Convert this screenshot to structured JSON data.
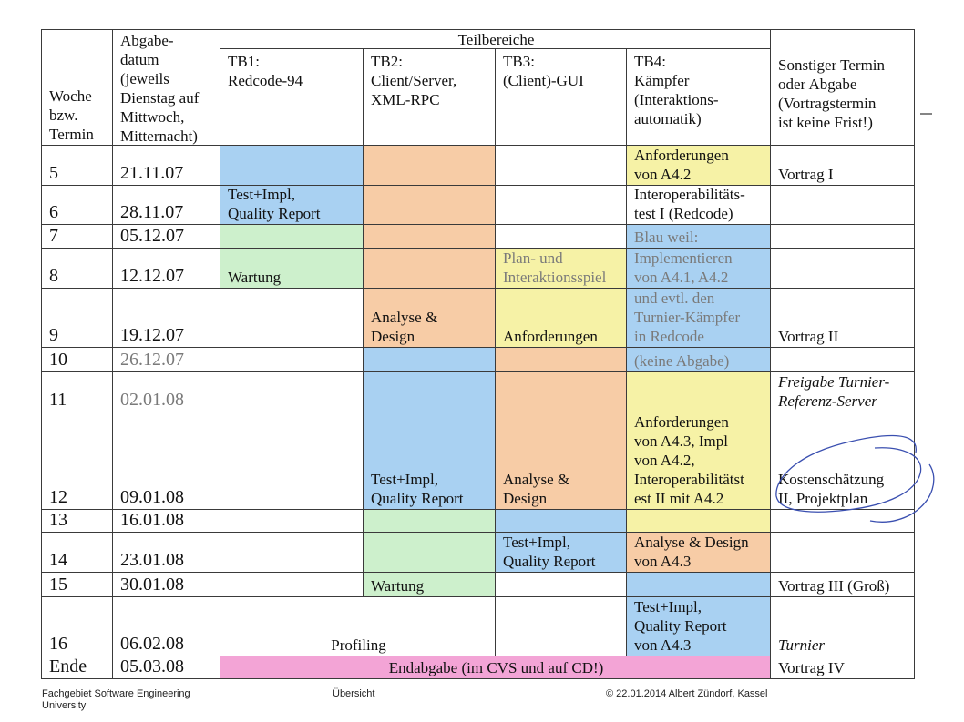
{
  "header": {
    "week": "Woche\nbzw.\nTermin",
    "deadline": "Abgabe-\ndatum\n(jeweils\nDienstag auf\nMittwoch,\nMitternacht)",
    "teilbereiche": "Teilbereiche",
    "tb1": "TB1:\nRedcode-94",
    "tb2": "TB2:\nClient/Server,\nXML-RPC",
    "tb3": "TB3:\n(Client)-GUI",
    "tb4": "TB4:\nKämpfer\n(Interaktions-\nautomatik)",
    "other": "Sonstiger Termin\noder Abgabe\n(Vortragstermin\nist keine Frist!)"
  },
  "rows": {
    "r5": {
      "week": "5",
      "date": "21.11.07",
      "tb4": "Anforderungen\nvon A4.2",
      "other": "Vortrag I"
    },
    "r6": {
      "week": "6",
      "date": "28.11.07",
      "tb1": "Test+Impl,\nQuality Report",
      "tb4": "Interoperabilitäts-\ntest I (Redcode)"
    },
    "r7": {
      "week": "7",
      "date": "05.12.07",
      "tb4": "Blau weil:"
    },
    "r8": {
      "week": "8",
      "date": "12.12.07",
      "tb1": "Wartung",
      "tb3": "Plan- und\nInteraktionsspiel",
      "tb4": "Implementieren\nvon A4.1, A4.2"
    },
    "r9": {
      "week": "9",
      "date": "19.12.07",
      "tb2": "Analyse &\nDesign",
      "tb3": "Anforderungen",
      "tb4": "und evtl. den\nTurnier-Kämpfer\nin Redcode",
      "other": "Vortrag II"
    },
    "r10": {
      "week": "10",
      "date": "26.12.07",
      "tb4": "(keine Abgabe)"
    },
    "r11": {
      "week": "11",
      "date": "02.01.08",
      "other": "Freigabe Turnier-\nReferenz-Server"
    },
    "r12": {
      "week": "12",
      "date": "09.01.08",
      "tb2": "Test+Impl,\nQuality Report",
      "tb3": "Analyse &\nDesign",
      "tb4": "Anforderungen\nvon A4.3, Impl\nvon A4.2,\nInteroperabilitätst\nest II mit A4.2",
      "other": "Kostenschätzung\nII, Projektplan"
    },
    "r13": {
      "week": "13",
      "date": "16.01.08"
    },
    "r14": {
      "week": "14",
      "date": "23.01.08",
      "tb3": "Test+Impl,\nQuality Report",
      "tb4": "Analyse & Design\nvon A4.3"
    },
    "r15": {
      "week": "15",
      "date": "30.01.08",
      "tb2": "Wartung",
      "other": "Vortrag III (Groß)"
    },
    "r16": {
      "week": "16",
      "date": "06.02.08",
      "profiling": "Profiling",
      "tb4": "Test+Impl,\nQuality Report\nvon A4.3",
      "other": "Turnier"
    },
    "rEnde": {
      "week": "Ende",
      "date": "05.03.08",
      "final": "Endabgabe (im CVS und auf CD!)",
      "other": "Vortrag IV"
    }
  },
  "footer": {
    "left": "Fachgebiet Software Engineering\nUniversity",
    "center": "Übersicht",
    "right": "© 22.01.2014 Albert Zündorf, Kassel"
  },
  "colors": {
    "blue": "#a9d1f2",
    "orange": "#f7cca6",
    "yellow": "#f6f2a6",
    "green": "#cdf0cc",
    "pink": "#f3a4d6",
    "pen": "#3a4fb0"
  }
}
